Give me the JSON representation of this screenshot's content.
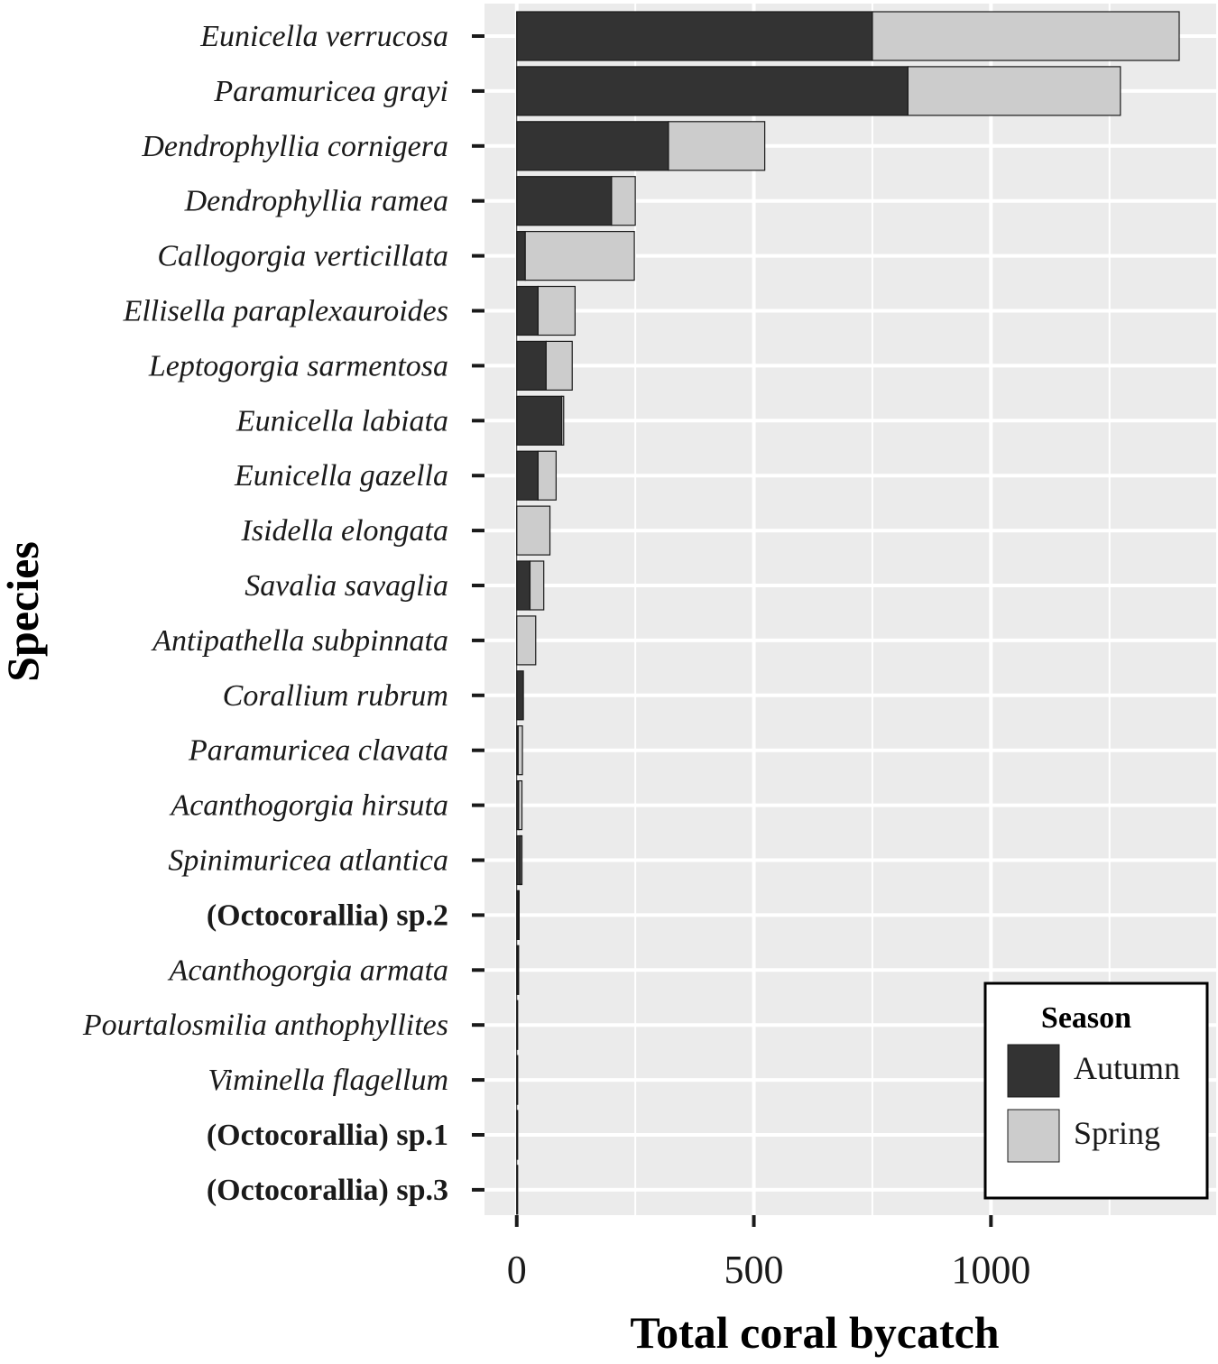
{
  "chart_data": {
    "type": "bar",
    "orientation": "horizontal",
    "stacked": true,
    "title": "",
    "xlabel": "Total coral bycatch",
    "ylabel": "Species",
    "xlim": [
      -68,
      1475
    ],
    "xticks": [
      0,
      500,
      1000
    ],
    "xtick_labels": [
      "0",
      "500",
      "1000"
    ],
    "grid": true,
    "legend_position": "bottom-right",
    "legend_title": "Season",
    "categories": [
      {
        "label": "Eunicella verrucosa",
        "bold": false
      },
      {
        "label": "Paramuricea grayi",
        "bold": false
      },
      {
        "label": "Dendrophyllia cornigera",
        "bold": false
      },
      {
        "label": "Dendrophyllia ramea",
        "bold": false
      },
      {
        "label": "Callogorgia verticillata",
        "bold": false
      },
      {
        "label": "Ellisella paraplexauroides",
        "bold": false
      },
      {
        "label": "Leptogorgia sarmentosa",
        "bold": false
      },
      {
        "label": "Eunicella labiata",
        "bold": false
      },
      {
        "label": "Eunicella gazella",
        "bold": false
      },
      {
        "label": "Isidella elongata",
        "bold": false
      },
      {
        "label": "Savalia savaglia",
        "bold": false
      },
      {
        "label": "Antipathella subpinnata",
        "bold": false
      },
      {
        "label": "Corallium rubrum",
        "bold": false
      },
      {
        "label": "Paramuricea clavata",
        "bold": false
      },
      {
        "label": "Acanthogorgia hirsuta",
        "bold": false
      },
      {
        "label": "Spinimuricea atlantica",
        "bold": false
      },
      {
        "label": "(Octocorallia) sp.2",
        "bold": true
      },
      {
        "label": "Acanthogorgia armata",
        "bold": false
      },
      {
        "label": "Pourtalosmilia anthophyllites",
        "bold": false
      },
      {
        "label": "Viminella flagellum",
        "bold": false
      },
      {
        "label": "(Octocorallia) sp.1",
        "bold": true
      },
      {
        "label": "(Octocorallia) sp.3",
        "bold": true
      }
    ],
    "series": [
      {
        "name": "Autumn",
        "color": "#333333",
        "values": [
          750,
          825,
          320,
          200,
          18,
          45,
          62,
          95,
          45,
          0,
          28,
          0,
          14,
          3,
          4,
          8,
          3,
          2,
          1,
          1,
          1,
          1
        ]
      },
      {
        "name": "Spring",
        "color": "#cccccc",
        "values": [
          647,
          448,
          203,
          50,
          230,
          78,
          55,
          4,
          38,
          70,
          29,
          40,
          0,
          9,
          7,
          3,
          2,
          2,
          1,
          1,
          1,
          1
        ]
      }
    ]
  },
  "colors": {
    "panel": "#ebebeb",
    "grid": "#ffffff",
    "bar_outline": "#1a1a1a"
  }
}
